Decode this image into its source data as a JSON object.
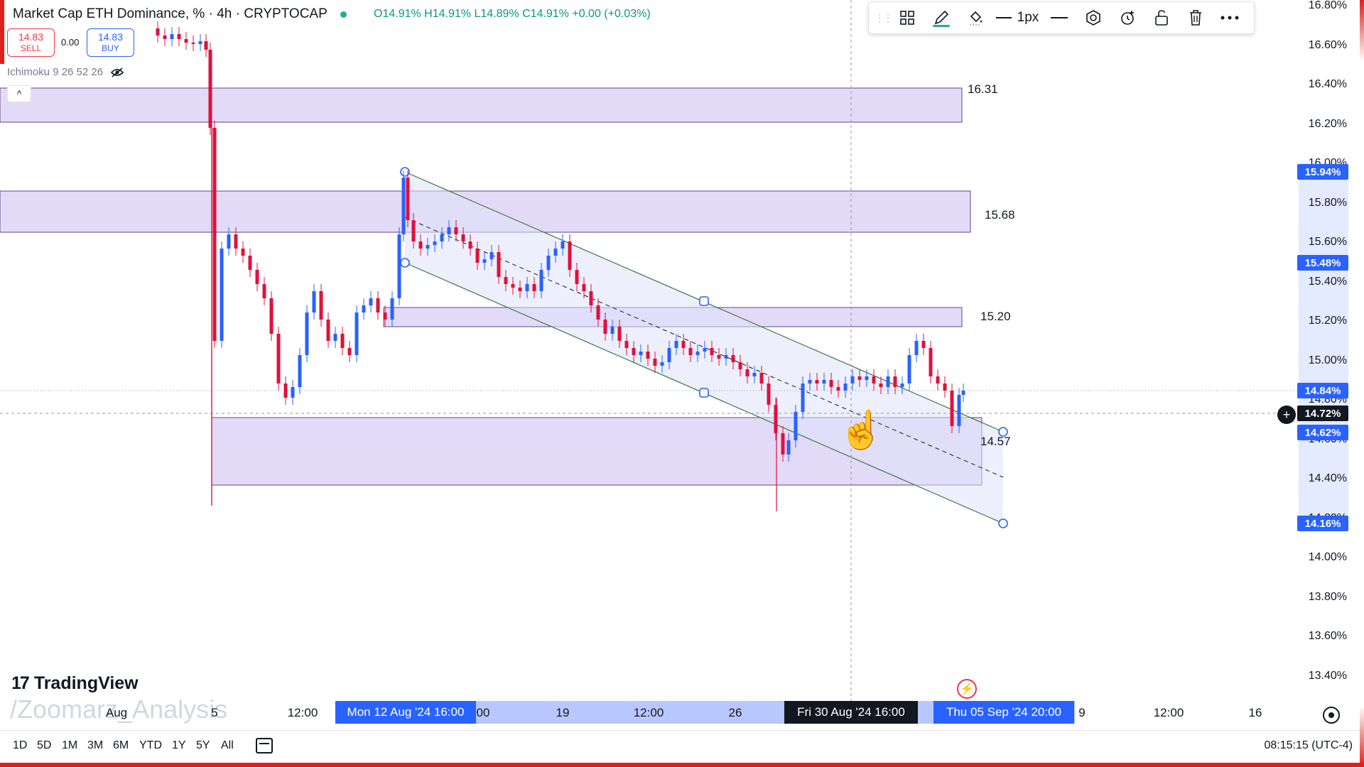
{
  "header": {
    "symbol_title": "Market Cap ETH Dominance, % · 4h · CRYPTOCAP",
    "ohlc": {
      "open": "O14.91%",
      "high": "H14.91%",
      "low": "L14.89%",
      "close": "C14.91%",
      "change": "+0.00 (+0.03%)"
    },
    "sell": {
      "price": "14.83",
      "label": "SELL"
    },
    "buy": {
      "price": "14.83",
      "label": "BUY"
    },
    "spread": "0.00",
    "indicator_label": "Ichimoku 9 26 52 26",
    "collapse_glyph": "^"
  },
  "drawing_toolbar": {
    "line_width_label": "1px",
    "icons": [
      "drag-handle-icon",
      "template-grid-icon",
      "pencil-icon",
      "fill-bucket-icon",
      "line-style-icon",
      "line-dash-icon",
      "visibility-icon",
      "alert-clock-icon",
      "lock-icon",
      "trash-icon",
      "more-icon"
    ]
  },
  "price_axis": {
    "labels": [
      "16.80%",
      "16.60%",
      "16.40%",
      "16.20%",
      "16.00%",
      "15.80%",
      "15.60%",
      "15.40%",
      "15.20%",
      "15.00%",
      "14.80%",
      "14.60%",
      "14.40%",
      "14.20%",
      "14.00%",
      "13.80%",
      "13.60%",
      "13.40%"
    ],
    "tags": [
      {
        "text": "15.94%"
      },
      {
        "text": "15.48%"
      },
      {
        "text": "14.84%"
      },
      {
        "text": "14.72%"
      },
      {
        "text": "14.62%"
      },
      {
        "text": "14.16%"
      }
    ]
  },
  "zones": [
    {
      "label": "16.31"
    },
    {
      "label": "15.68"
    },
    {
      "label": "15.20"
    },
    {
      "label": "14.57"
    }
  ],
  "time_axis": {
    "ticks": [
      "Aug",
      "5",
      "12:00",
      "00",
      "19",
      "12:00",
      "26",
      "9",
      "12:00",
      "16"
    ],
    "tags": [
      {
        "text": "Mon 12 Aug '24   16:00"
      },
      {
        "text": "Fri 30 Aug '24   16:00"
      },
      {
        "text": "Thu 05 Sep '24   20:00"
      }
    ]
  },
  "branding": {
    "name": "TradingView",
    "logo_glyph": "17",
    "watermark": "/Zoomarz_Analysis"
  },
  "bottom_bar": {
    "ranges": [
      "1D",
      "5D",
      "1M",
      "3M",
      "6M",
      "YTD",
      "1Y",
      "5Y",
      "All"
    ],
    "clock": "08:15:15 (UTC-4)"
  },
  "colors": {
    "up": "#2962ff",
    "down": "#e0103c",
    "zone_fill": "#e3daf7",
    "channel_line": "#3d7a45",
    "accent": "#2962ff"
  }
}
